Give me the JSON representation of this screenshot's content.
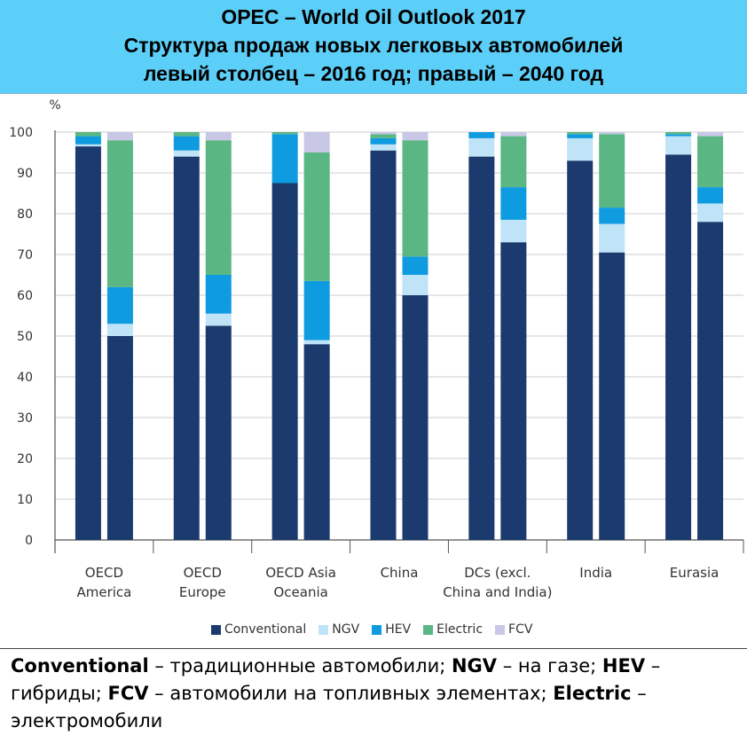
{
  "header": {
    "line1": "OPEC – World Oil Outlook 2017",
    "line2": "Структура продаж новых легковых автомобилей",
    "line3": "левый столбец – 2016 год; правый – 2040 год"
  },
  "colors": {
    "Conventional": "#1b3a6e",
    "NGV": "#bfe3f7",
    "HEV": "#0f9be0",
    "Electric": "#5ab682",
    "FCV": "#c8c8e6",
    "grid": "#cccccc",
    "axis": "#555555"
  },
  "caption": {
    "t1": "Conventional",
    "t2": " – традиционные автомобили; ",
    "t3": "NGV",
    "t4": " – на газе; ",
    "t5": "HEV",
    "t6": " – гибриды; ",
    "t7": "FCV",
    "t8": " – автомобили на топливных элементах; ",
    "t9": "Electric",
    "t10": " – электромобили"
  },
  "chart_data": {
    "type": "bar",
    "stacked": true,
    "ylabel": "%",
    "ylim": [
      0,
      100
    ],
    "yticks": [
      0,
      10,
      20,
      30,
      40,
      50,
      60,
      70,
      80,
      90,
      100
    ],
    "grid": true,
    "legend_position": "bottom",
    "categories": [
      [
        "OECD",
        "America"
      ],
      [
        "OECD",
        "Europe"
      ],
      [
        "OECD Asia",
        "Oceania"
      ],
      [
        "China"
      ],
      [
        "DCs (excl.",
        "China and India)"
      ],
      [
        "India"
      ],
      [
        "Eurasia"
      ]
    ],
    "series_order": [
      "Conventional",
      "NGV",
      "HEV",
      "Electric",
      "FCV"
    ],
    "years": [
      "2016",
      "2040"
    ],
    "series": [
      {
        "name": "Conventional",
        "2016": [
          96.5,
          94,
          87.5,
          95.5,
          94,
          93,
          94.5
        ],
        "2040": [
          50,
          52.5,
          48,
          60,
          73,
          70.5,
          78
        ]
      },
      {
        "name": "NGV",
        "2016": [
          0.5,
          1.5,
          0,
          1.5,
          4.5,
          5.5,
          4.5
        ],
        "2040": [
          3,
          3,
          1,
          5,
          5.5,
          7,
          4.5
        ]
      },
      {
        "name": "HEV",
        "2016": [
          2,
          3.5,
          12,
          1.5,
          1.5,
          1,
          0.5
        ],
        "2040": [
          9,
          9.5,
          14.5,
          4.5,
          8,
          4,
          4
        ]
      },
      {
        "name": "Electric",
        "2016": [
          1,
          1,
          0.5,
          1,
          0,
          0.5,
          0.5
        ],
        "2040": [
          36,
          33,
          31.5,
          28.5,
          12.5,
          18,
          12.5
        ]
      },
      {
        "name": "FCV",
        "2016": [
          0,
          0,
          0,
          0.5,
          0,
          0,
          0
        ],
        "2040": [
          2,
          2,
          5,
          2,
          1,
          0.5,
          1
        ]
      }
    ]
  }
}
